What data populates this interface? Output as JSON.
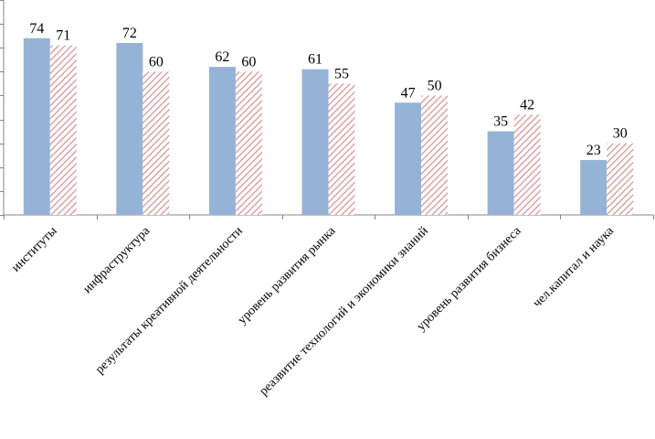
{
  "chart_data": {
    "type": "bar",
    "title": "",
    "xlabel": "",
    "ylabel": "",
    "ylim": [
      0,
      90
    ],
    "y_tick_step": 10,
    "y_tick_labels_visible": false,
    "categories": [
      "институты",
      "инфраструктура",
      "результаты креативной деятельности",
      "уровень развития рынка",
      "реазвитие технологий и экономики знаний",
      "уровень развития бизнеса",
      "чел.капитал и наука"
    ],
    "series": [
      {
        "name": "series-1",
        "color": "#95b3d7",
        "pattern": "solid",
        "values": [
          74,
          72,
          62,
          61,
          47,
          35,
          23
        ]
      },
      {
        "name": "series-2",
        "color": "#d99694",
        "pattern": "diagonal-hatch",
        "values": [
          71,
          60,
          60,
          55,
          50,
          42,
          30
        ]
      }
    ],
    "legend": "none",
    "grid": false
  }
}
